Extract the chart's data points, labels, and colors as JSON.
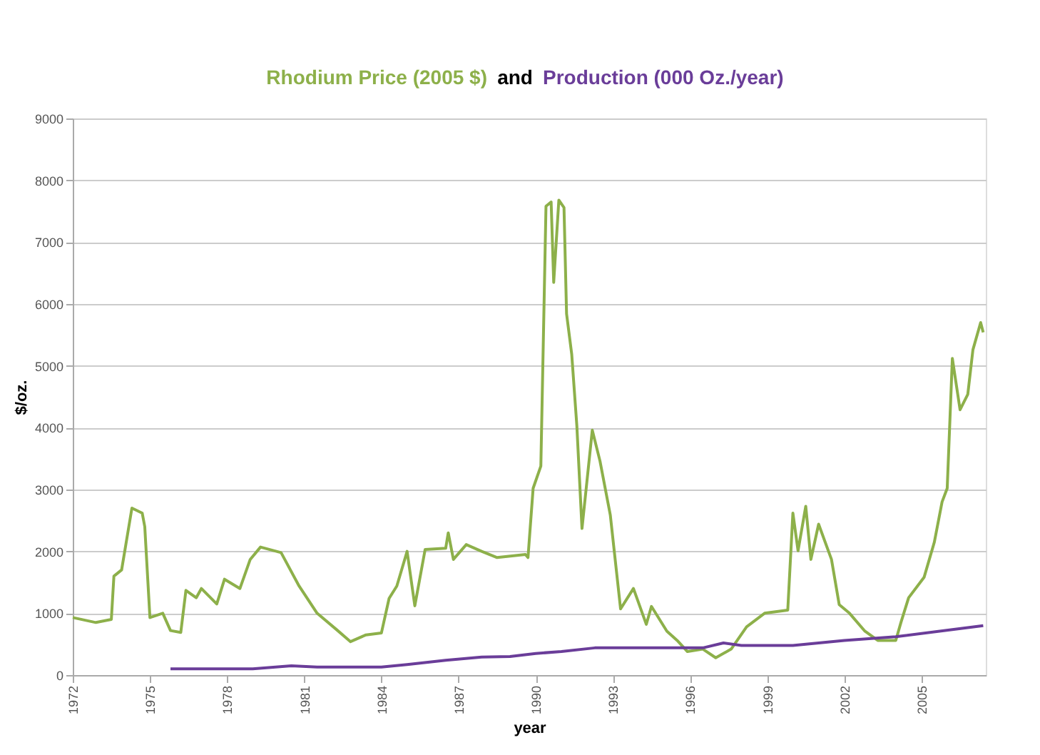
{
  "chart_data": {
    "type": "line",
    "annotations": [
      "and"
    ],
    "xlabel": "year",
    "ylabel": "$/oz.",
    "xlim": [
      1972,
      2007.5
    ],
    "xticks": [
      1972,
      1975,
      1978,
      1981,
      1984,
      1987,
      1990,
      1993,
      1996,
      1999,
      2002,
      2005
    ],
    "ylim": [
      0,
      9000
    ],
    "yticks": [
      0,
      1000,
      2000,
      3000,
      4000,
      5000,
      6000,
      7000,
      8000,
      9000
    ],
    "grid": "y",
    "legend": false,
    "marker": "none",
    "line_style": "solid",
    "series": [
      {
        "name": "Rhodium Price (2005 $)",
        "color": "#8db04a",
        "x": [
          1972,
          1972.9,
          1973.5,
          1973.6,
          1973.9,
          1974.3,
          1974.7,
          1974.8,
          1975.0,
          1975.5,
          1975.8,
          1976.2,
          1976.4,
          1976.8,
          1977.0,
          1977.6,
          1977.9,
          1978.5,
          1978.9,
          1979.3,
          1980.1,
          1980.8,
          1981.5,
          1982.3,
          1982.8,
          1983.4,
          1984.0,
          1984.3,
          1984.6,
          1985.0,
          1985.3,
          1985.7,
          1986.5,
          1986.6,
          1986.8,
          1987.3,
          1987.9,
          1988.5,
          1989.6,
          1989.7,
          1989.9,
          1990.2,
          1990.4,
          1990.6,
          1990.7,
          1990.9,
          1991.1,
          1991.2,
          1991.4,
          1991.6,
          1991.8,
          1992.2,
          1992.5,
          1992.9,
          1993.3,
          1993.8,
          1994.3,
          1994.5,
          1995.1,
          1995.5,
          1995.9,
          1996.5,
          1997.0,
          1997.6,
          1998.2,
          1998.9,
          1999.8,
          2000.0,
          2000.2,
          2000.5,
          2000.7,
          2001.0,
          2001.5,
          2001.8,
          2002.2,
          2002.8,
          2003.3,
          2004.0,
          2004.2,
          2004.5,
          2005.1,
          2005.5,
          2005.8,
          2006.0,
          2006.2,
          2006.5,
          2006.8,
          2007.0,
          2007.3,
          2007.4
        ],
        "values": [
          930,
          850,
          900,
          1600,
          1700,
          2700,
          2620,
          2400,
          930,
          1000,
          720,
          690,
          1370,
          1250,
          1400,
          1150,
          1550,
          1400,
          1870,
          2070,
          1980,
          1440,
          1000,
          720,
          540,
          650,
          680,
          1240,
          1440,
          2000,
          1120,
          2030,
          2050,
          2300,
          1870,
          2110,
          2000,
          1900,
          1950,
          1900,
          3020,
          3380,
          7580,
          7650,
          6350,
          7680,
          7560,
          5840,
          5190,
          4030,
          2370,
          3960,
          3460,
          2590,
          1070,
          1400,
          820,
          1110,
          710,
          560,
          380,
          420,
          280,
          420,
          780,
          1000,
          1050,
          2620,
          2010,
          2730,
          1870,
          2440,
          1870,
          1140,
          1000,
          710,
          560,
          560,
          850,
          1250,
          1580,
          2150,
          2800,
          3020,
          5120,
          4290,
          4540,
          5260,
          5700,
          5540
        ]
      },
      {
        "name": "Production (000 Oz./year)",
        "color": "#6a3d99",
        "x": [
          1975.8,
          1979,
          1980.5,
          1981.5,
          1984,
          1985,
          1986.5,
          1987.9,
          1989,
          1990,
          1991,
          1992.3,
          1995,
          1996.5,
          1997.3,
          1998,
          2000,
          2002,
          2004,
          2007.4
        ],
        "values": [
          100,
          100,
          150,
          130,
          130,
          170,
          240,
          290,
          300,
          350,
          380,
          440,
          440,
          440,
          520,
          480,
          480,
          560,
          620,
          800
        ]
      }
    ]
  }
}
